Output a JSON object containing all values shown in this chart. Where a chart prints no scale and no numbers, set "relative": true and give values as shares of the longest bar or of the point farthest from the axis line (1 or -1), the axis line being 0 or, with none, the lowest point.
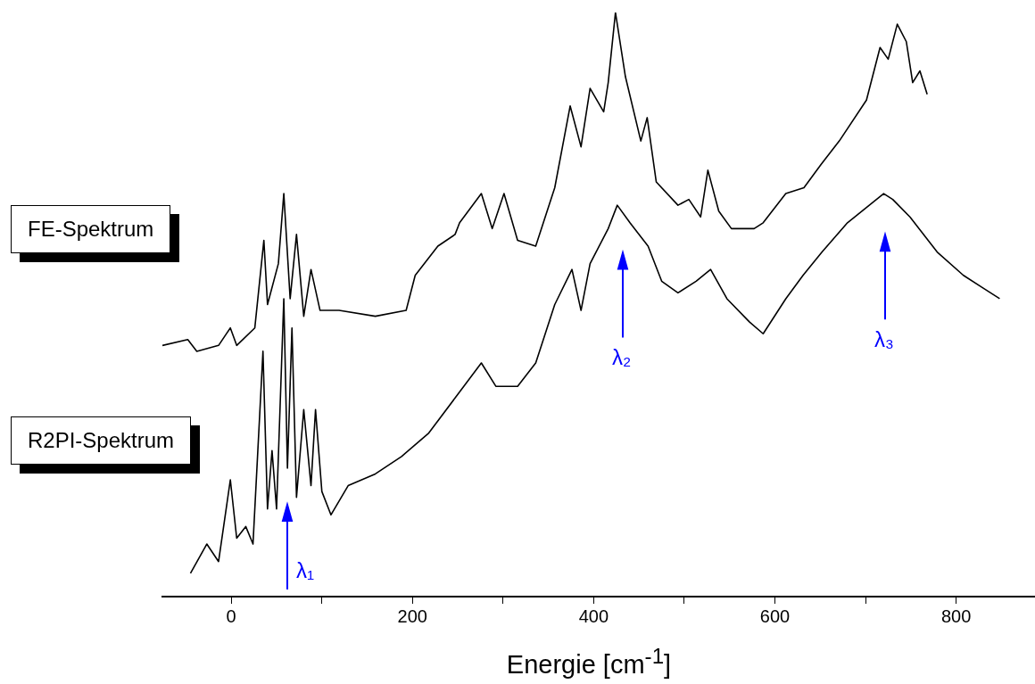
{
  "chart_data": {
    "type": "line",
    "relative": true,
    "xlabel": "Energie [cm$^{-1}$]",
    "xlim": [
      -76,
      887
    ],
    "xticks": [
      0,
      {
        "value": 100,
        "label": null
      },
      200,
      {
        "value": 300,
        "label": null
      },
      400,
      {
        "value": 500,
        "label": null
      },
      600,
      {
        "value": 700,
        "label": null
      },
      800
    ],
    "legend": false,
    "grid": false,
    "marker": "none",
    "line_style": "solid",
    "ref_lines": [
      {
        "axis": "x",
        "value": 62,
        "label": "λ₁",
        "color": "#0000ff"
      },
      {
        "axis": "x",
        "value": 432,
        "label": "λ₂",
        "color": "#0000ff"
      },
      {
        "axis": "x",
        "value": 722,
        "label": "λ₃",
        "color": "#0000ff"
      }
    ],
    "series": [
      {
        "name": "FE-Spektrum",
        "color": "#000000",
        "x": [
          -76,
          -48,
          -38,
          -14,
          -1,
          6,
          26,
          36,
          40,
          52,
          58,
          65,
          72,
          80,
          88,
          98,
          119,
          159,
          193,
          203,
          228,
          247,
          252,
          276,
          288,
          301,
          316,
          336,
          357,
          374,
          386,
          396,
          411,
          416,
          424,
          435,
          452,
          459,
          469,
          493,
          505,
          518,
          526,
          538,
          552,
          577,
          587,
          612,
          632,
          651,
          671,
          701,
          716,
          725,
          735,
          745,
          752,
          760,
          768
        ],
        "values": [
          0.43,
          0.44,
          0.42,
          0.43,
          0.46,
          0.43,
          0.46,
          0.61,
          0.5,
          0.57,
          0.69,
          0.51,
          0.62,
          0.48,
          0.56,
          0.49,
          0.49,
          0.48,
          0.49,
          0.55,
          0.6,
          0.62,
          0.64,
          0.69,
          0.63,
          0.69,
          0.61,
          0.6,
          0.7,
          0.84,
          0.77,
          0.87,
          0.83,
          0.88,
          1.0,
          0.89,
          0.78,
          0.82,
          0.71,
          0.67,
          0.68,
          0.65,
          0.73,
          0.66,
          0.63,
          0.63,
          0.64,
          0.69,
          0.7,
          0.74,
          0.78,
          0.85,
          0.94,
          0.92,
          0.98,
          0.95,
          0.88,
          0.9,
          0.86
        ]
      },
      {
        "name": "R2PI-Spektrum",
        "color": "#000000",
        "x": [
          -45,
          -27,
          -14,
          -1,
          6,
          16,
          24,
          31,
          35,
          40,
          45,
          50,
          58,
          62,
          67,
          72,
          80,
          88,
          93,
          100,
          110,
          129,
          159,
          188,
          218,
          247,
          276,
          292,
          316,
          336,
          357,
          376,
          386,
          396,
          416,
          426,
          440,
          460,
          475,
          493,
          513,
          529,
          547,
          572,
          587,
          612,
          631,
          652,
          680,
          720,
          730,
          749,
          779,
          808,
          828,
          848
        ],
        "values": [
          0.04,
          0.09,
          0.06,
          0.2,
          0.1,
          0.12,
          0.09,
          0.3,
          0.42,
          0.15,
          0.25,
          0.15,
          0.51,
          0.22,
          0.46,
          0.17,
          0.32,
          0.19,
          0.32,
          0.18,
          0.14,
          0.19,
          0.21,
          0.24,
          0.28,
          0.34,
          0.4,
          0.36,
          0.36,
          0.4,
          0.5,
          0.56,
          0.49,
          0.57,
          0.63,
          0.67,
          0.64,
          0.6,
          0.54,
          0.52,
          0.54,
          0.56,
          0.51,
          0.47,
          0.45,
          0.51,
          0.55,
          0.59,
          0.64,
          0.69,
          0.68,
          0.65,
          0.59,
          0.55,
          0.53,
          0.51
        ]
      }
    ]
  }
}
